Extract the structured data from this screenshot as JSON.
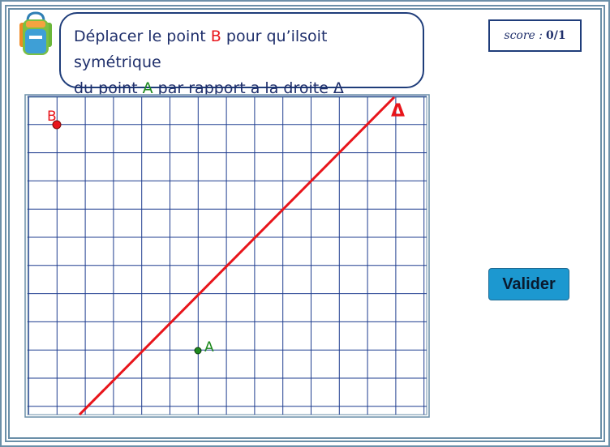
{
  "instruction": {
    "line1_before": "Déplacer le point ",
    "point_b": "B",
    "line1_after": " pour qu’ilsoit symétrique",
    "line2_before": "du point ",
    "point_a": "A",
    "line2_after": " par rapport a la droite Δ"
  },
  "score": {
    "label": "score :",
    "value": "0/1"
  },
  "grid": {
    "point_b_label": "B",
    "point_a_label": "A",
    "line_label": "Δ",
    "line_color": "#e8151b",
    "point_b_color": "#e8151b",
    "point_a_color": "#1f8a1f",
    "grid_color": "#1f3d8f"
  },
  "buttons": {
    "valider": "Valider"
  },
  "icons": {
    "backpack": "backpack-icon"
  }
}
